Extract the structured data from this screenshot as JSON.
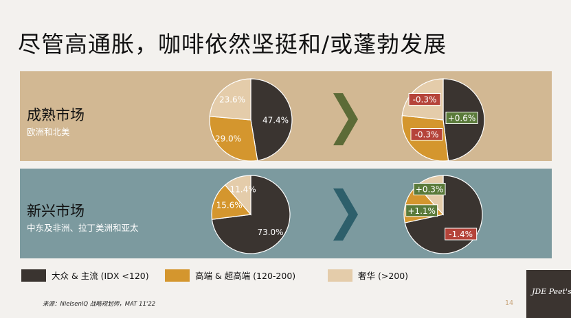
{
  "title": "尽管高通胀，咖啡依然坚挺和/或蓬勃发展",
  "regions": [
    {
      "name": "成熟市场",
      "sub": "欧洲和北美"
    },
    {
      "name": "新兴市场",
      "sub": "中东及非洲、拉丁美洲和亚太"
    }
  ],
  "colors": {
    "mass": "#3a3430",
    "premium": "#d4962e",
    "luxury": "#e4ccaa",
    "positive": "#5a7a3a",
    "negative": "#b5443a",
    "arrow_mature": "#5c6b37",
    "arrow_emerging": "#2d5f6b"
  },
  "legend": [
    {
      "label": "大众 & 主流 (IDX <120)",
      "color_key": "mass"
    },
    {
      "label": "高端 & 超高端 (120-200)",
      "color_key": "premium"
    },
    {
      "label": "奢华 (>200)",
      "color_key": "luxury"
    }
  ],
  "chart_data": [
    {
      "type": "pie",
      "region": "成熟市场",
      "categories": [
        "大众 & 主流 (IDX <120)",
        "高端 & 超高端 (120-200)",
        "奢华 (>200)"
      ],
      "values": [
        47.4,
        29.0,
        23.6
      ],
      "labels": [
        "47.4%",
        "29.0%",
        "23.6%"
      ]
    },
    {
      "type": "pie",
      "region": "成熟市场",
      "categories": [
        "大众 & 主流 (IDX <120)",
        "高端 & 超高端 (120-200)",
        "奢华 (>200)"
      ],
      "values": [
        48.0,
        28.7,
        23.3
      ],
      "changes": [
        0.6,
        -0.3,
        -0.3
      ],
      "labels": [
        "+0.6%",
        "-0.3%",
        "-0.3%"
      ]
    },
    {
      "type": "pie",
      "region": "新兴市场",
      "categories": [
        "大众 & 主流 (IDX <120)",
        "高端 & 超高端 (120-200)",
        "奢华 (>200)"
      ],
      "values": [
        73.0,
        15.6,
        11.4
      ],
      "labels": [
        "73.0%",
        "15.6%",
        "11.4%"
      ]
    },
    {
      "type": "pie",
      "region": "新兴市场",
      "categories": [
        "大众 & 主流 (IDX <120)",
        "高端 & 超高端 (120-200)",
        "奢华 (>200)"
      ],
      "values": [
        71.6,
        16.7,
        11.7
      ],
      "changes": [
        -1.4,
        1.1,
        0.3
      ],
      "labels": [
        "-1.4%",
        "+1.1%",
        "+0.3%"
      ]
    }
  ],
  "source": "来源：NielsenIQ 战略规划师，MAT 11'22",
  "page_number": "14",
  "logo": "JDE Peet's"
}
